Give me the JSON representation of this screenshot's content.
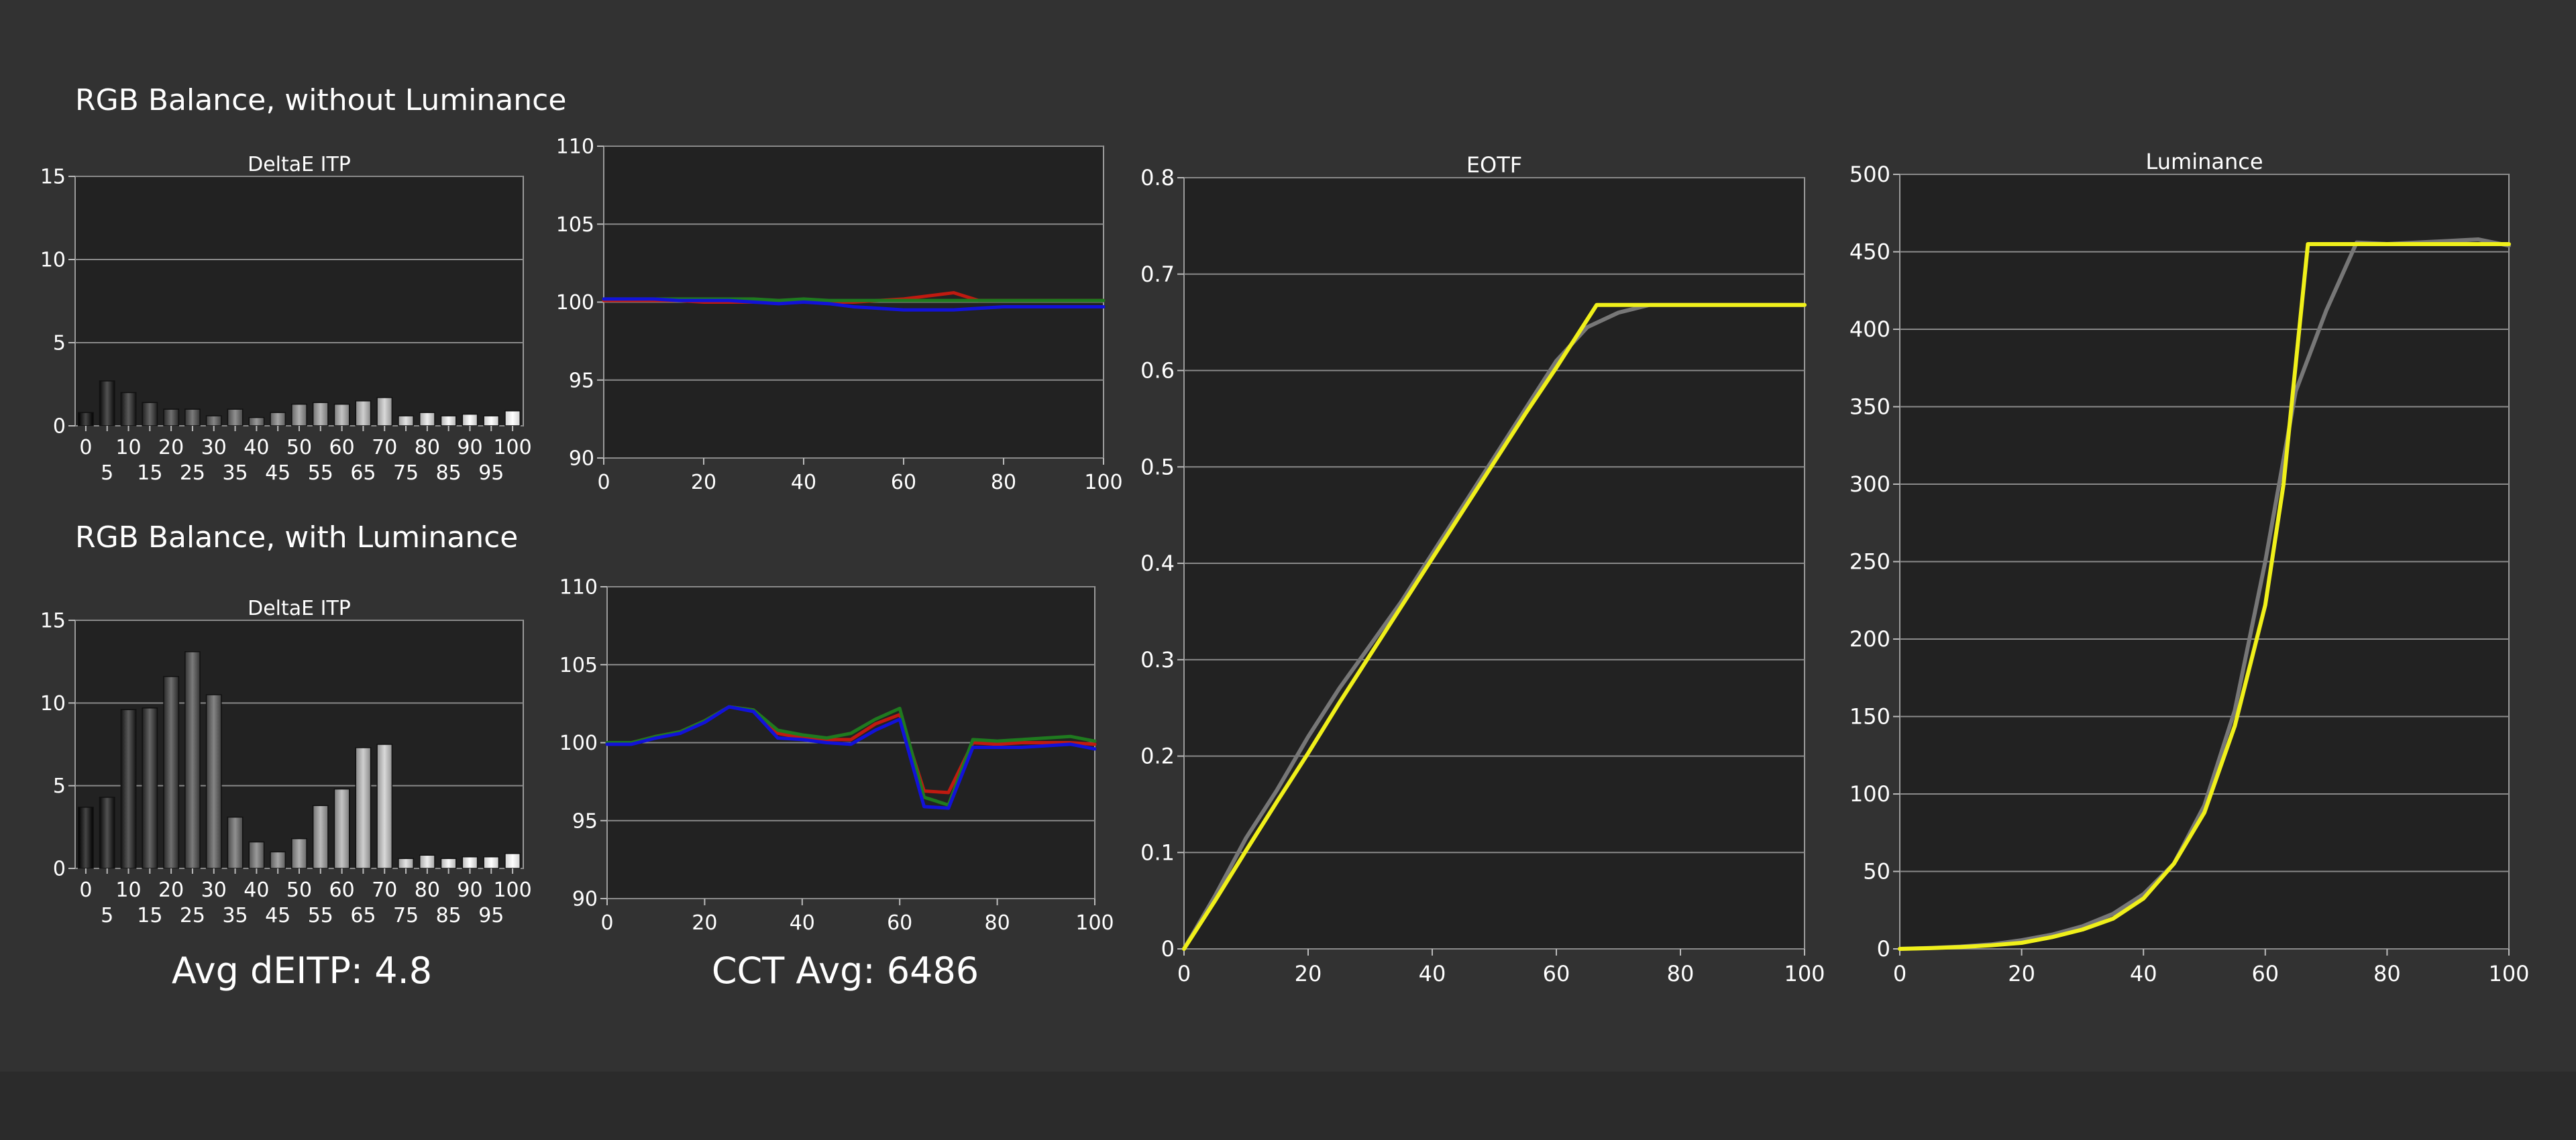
{
  "headings": {
    "without_luminance": "RGB Balance, without Luminance",
    "with_luminance": "RGB Balance, with Luminance"
  },
  "summary": {
    "avg_deitp": "Avg dEITP: 4.8",
    "cct_avg": "CCT Avg: 6486"
  },
  "colors": {
    "background": "#323232",
    "plot_background": "#222222",
    "grid": "#8a8a8a",
    "red": "#c01a10",
    "green": "#1f7a1f",
    "blue": "#1212d8",
    "target": "#777777",
    "measured": "#f0f01a"
  },
  "chart_data": [
    {
      "id": "deitp_without",
      "type": "bar",
      "title": "DeltaE ITP",
      "categories": [
        "0",
        "5",
        "10",
        "15",
        "20",
        "25",
        "30",
        "35",
        "40",
        "45",
        "50",
        "55",
        "60",
        "65",
        "70",
        "75",
        "80",
        "85",
        "90",
        "95",
        "100"
      ],
      "values": [
        0.8,
        2.7,
        2.0,
        1.4,
        1.0,
        1.0,
        0.6,
        1.0,
        0.5,
        0.8,
        1.3,
        1.4,
        1.3,
        1.5,
        1.7,
        0.6,
        0.8,
        0.6,
        0.7,
        0.6,
        0.9
      ],
      "ylim": [
        0,
        15
      ],
      "yticks": [
        "0",
        "5",
        "10",
        "15"
      ],
      "grid": true
    },
    {
      "id": "rgb_without",
      "type": "line",
      "title": "",
      "x": [
        0,
        5,
        10,
        15,
        20,
        25,
        30,
        35,
        40,
        45,
        50,
        55,
        60,
        65,
        70,
        75,
        80,
        85,
        90,
        95,
        100
      ],
      "series": [
        {
          "color_key": "red",
          "values": [
            100.1,
            100.1,
            100.1,
            100.1,
            100.0,
            100.0,
            100.0,
            100.1,
            100.0,
            100.0,
            100.0,
            100.1,
            100.2,
            100.4,
            100.6,
            100.1,
            100.1,
            100.1,
            100.1,
            100.1,
            100.1
          ]
        },
        {
          "color_key": "green",
          "values": [
            100.2,
            100.2,
            100.2,
            100.2,
            100.2,
            100.2,
            100.2,
            100.1,
            100.2,
            100.1,
            100.1,
            100.1,
            100.1,
            100.1,
            100.1,
            100.1,
            100.1,
            100.1,
            100.1,
            100.1,
            100.1
          ]
        },
        {
          "color_key": "blue",
          "values": [
            100.2,
            100.2,
            100.2,
            100.1,
            100.1,
            100.1,
            100.0,
            99.9,
            100.0,
            99.9,
            99.7,
            99.6,
            99.5,
            99.5,
            99.5,
            99.6,
            99.7,
            99.7,
            99.7,
            99.7,
            99.7
          ]
        }
      ],
      "xlim": [
        0,
        100
      ],
      "ylim": [
        90,
        110
      ],
      "xticks": [
        "0",
        "20",
        "40",
        "60",
        "80",
        "100"
      ],
      "yticks": [
        "90",
        "95",
        "100",
        "105",
        "110"
      ],
      "grid": true
    },
    {
      "id": "eotf",
      "type": "line",
      "title": "EOTF",
      "x": [
        0,
        5,
        10,
        15,
        20,
        25,
        30,
        35,
        40,
        45,
        50,
        55,
        60,
        65,
        70,
        75,
        80,
        85,
        90,
        95,
        100
      ],
      "series": [
        {
          "color_key": "target",
          "values": [
            0.0,
            0.055,
            0.115,
            0.165,
            0.22,
            0.27,
            0.315,
            0.36,
            0.41,
            0.46,
            0.51,
            0.56,
            0.61,
            0.645,
            0.66,
            0.668,
            0.668,
            0.668,
            0.668,
            0.668,
            0.668
          ]
        },
        {
          "color_key": "measured",
          "x": [
            0,
            5,
            10,
            15,
            20,
            25,
            30,
            35,
            40,
            45,
            50,
            55,
            60,
            66.5,
            70,
            75,
            80,
            85,
            90,
            95,
            100
          ],
          "values": [
            0.0,
            0.05,
            0.102,
            0.153,
            0.203,
            0.255,
            0.305,
            0.355,
            0.405,
            0.455,
            0.505,
            0.555,
            0.603,
            0.668,
            0.668,
            0.668,
            0.668,
            0.668,
            0.668,
            0.668,
            0.668
          ]
        }
      ],
      "xlim": [
        0,
        100
      ],
      "ylim": [
        0,
        0.8
      ],
      "xticks": [
        "0",
        "20",
        "40",
        "60",
        "80",
        "100"
      ],
      "yticks": [
        "0",
        "0.1",
        "0.2",
        "0.3",
        "0.4",
        "0.5",
        "0.6",
        "0.7",
        "0.8"
      ],
      "grid": true
    },
    {
      "id": "luminance",
      "type": "line",
      "title": "Luminance",
      "x": [
        0,
        5,
        10,
        15,
        20,
        25,
        30,
        35,
        40,
        45,
        50,
        55,
        60,
        65,
        70,
        75,
        80,
        85,
        90,
        95,
        100
      ],
      "series": [
        {
          "color_key": "target",
          "values": [
            0,
            0.6,
            1.5,
            2.9,
            5.6,
            9.2,
            14.6,
            22.6,
            35.3,
            55.0,
            92.6,
            154.0,
            250.0,
            360.0,
            412.0,
            456.0,
            455.0,
            456.0,
            457.0,
            458.0,
            454.0
          ]
        },
        {
          "color_key": "measured",
          "x": [
            0,
            5,
            10,
            15,
            20,
            25,
            30,
            35,
            40,
            45,
            50,
            55,
            60,
            63,
            67,
            70,
            75,
            80,
            85,
            90,
            95,
            100
          ],
          "values": [
            0,
            0.5,
            1.2,
            2.3,
            3.9,
            7.6,
            12.5,
            19.5,
            32.5,
            55.0,
            88.0,
            144.0,
            222.0,
            300.0,
            455.0,
            455.0,
            455.0,
            455.0,
            455.0,
            455.0,
            455.0,
            455.0
          ]
        }
      ],
      "xlim": [
        0,
        100
      ],
      "ylim": [
        0,
        500
      ],
      "xticks": [
        "0",
        "20",
        "40",
        "60",
        "80",
        "100"
      ],
      "yticks": [
        "0",
        "50",
        "100",
        "150",
        "200",
        "250",
        "300",
        "350",
        "400",
        "450",
        "500"
      ],
      "grid": true
    },
    {
      "id": "deitp_with",
      "type": "bar",
      "title": "DeltaE ITP",
      "categories": [
        "0",
        "5",
        "10",
        "15",
        "20",
        "25",
        "30",
        "35",
        "40",
        "45",
        "50",
        "55",
        "60",
        "65",
        "70",
        "75",
        "80",
        "85",
        "90",
        "95",
        "100"
      ],
      "values": [
        3.7,
        4.3,
        9.6,
        9.7,
        11.6,
        13.1,
        10.5,
        3.1,
        1.6,
        1.0,
        1.8,
        3.8,
        4.8,
        7.3,
        7.5,
        0.6,
        0.8,
        0.6,
        0.7,
        0.7,
        0.9
      ],
      "ylim": [
        0,
        15
      ],
      "yticks": [
        "0",
        "5",
        "10",
        "15"
      ],
      "grid": true
    },
    {
      "id": "rgb_with",
      "type": "line",
      "title": "",
      "x": [
        0,
        5,
        10,
        15,
        20,
        25,
        30,
        35,
        40,
        45,
        50,
        55,
        60,
        65,
        70,
        75,
        80,
        85,
        90,
        95,
        100
      ],
      "series": [
        {
          "color_key": "red",
          "values": [
            100.0,
            100.0,
            100.4,
            100.7,
            101.4,
            102.3,
            102.1,
            100.6,
            100.3,
            100.2,
            100.2,
            101.2,
            101.8,
            96.9,
            96.8,
            100.0,
            99.9,
            100.0,
            100.0,
            100.0,
            99.9
          ]
        },
        {
          "color_key": "green",
          "values": [
            100.0,
            100.0,
            100.4,
            100.7,
            101.4,
            102.3,
            102.1,
            100.8,
            100.5,
            100.3,
            100.6,
            101.5,
            102.2,
            96.5,
            96.0,
            100.2,
            100.1,
            100.2,
            100.3,
            100.4,
            100.1
          ]
        },
        {
          "color_key": "blue",
          "values": [
            99.9,
            99.9,
            100.3,
            100.6,
            101.3,
            102.3,
            102.0,
            100.3,
            100.2,
            100.0,
            99.9,
            100.8,
            101.5,
            95.9,
            95.8,
            99.7,
            99.7,
            99.7,
            99.8,
            99.9,
            99.6
          ]
        }
      ],
      "xlim": [
        0,
        100
      ],
      "ylim": [
        90,
        110
      ],
      "xticks": [
        "0",
        "20",
        "40",
        "60",
        "80",
        "100"
      ],
      "yticks": [
        "90",
        "95",
        "100",
        "105",
        "110"
      ],
      "grid": true
    }
  ]
}
